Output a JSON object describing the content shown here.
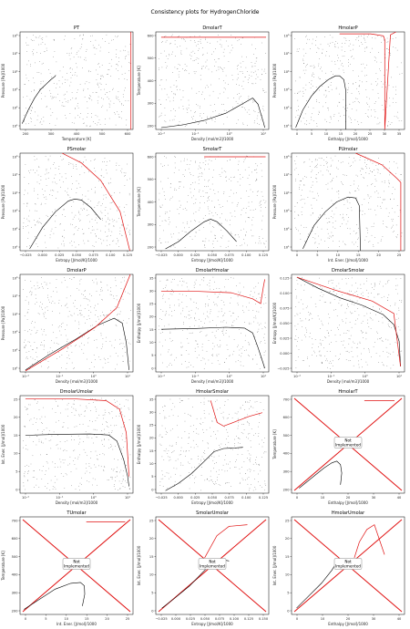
{
  "figure": {
    "title": "Consistency plots for HydrogenChloride",
    "not_implemented_label": "Not\nImplemented"
  },
  "chart_data": [
    {
      "id": "PT",
      "title": "PT",
      "type": "scatter",
      "xlabel": "Temperature [K]",
      "ylabel": "Pressure [Pa]/1000",
      "xticks": [
        "200",
        "300",
        "400",
        "500",
        "600"
      ],
      "yticks": [
        "10¹",
        "10²",
        "10³",
        "10⁴",
        "10⁵",
        "10⁶"
      ],
      "xlim": [
        150,
        700
      ],
      "yscale": "log",
      "ylim": [
        1,
        6
      ],
      "saturation": {
        "x": [
          160,
          190,
          220,
          250,
          280,
          300,
          320,
          324
        ],
        "y": [
          1.3,
          2.0,
          2.6,
          3.05,
          3.35,
          3.55,
          3.72,
          3.78
        ]
      },
      "grid_points": {
        "x_range": [
          160,
          690
        ],
        "y_range": [
          1,
          6
        ]
      },
      "redline": {
        "x": [
          690,
          690
        ],
        "y": [
          1,
          6
        ]
      },
      "implemented": true
    },
    {
      "id": "DmolarT",
      "title": "DmolarT",
      "type": "scatter",
      "xlabel": "Density [mol/m3]/1000",
      "ylabel": "Temperature [K]",
      "xticks": [
        "10⁻²",
        "10⁻¹",
        "10⁰",
        "10¹"
      ],
      "yticks": [
        "200",
        "300",
        "400",
        "500",
        "600"
      ],
      "xscale": "log",
      "xlim": [
        -2.6,
        1.6
      ],
      "ylim": [
        150,
        690
      ],
      "dome_gas": {
        "x": [
          -2.4,
          -1.6,
          -0.8,
          0,
          0.6,
          0.9,
          1.0
        ],
        "y": [
          160,
          175,
          200,
          240,
          290,
          315,
          324
        ]
      },
      "dome_liq": {
        "x": [
          1.0,
          1.2,
          1.3,
          1.4,
          1.45
        ],
        "y": [
          324,
          290,
          240,
          190,
          160
        ]
      },
      "redline": {
        "x": [
          -2.4,
          1.5
        ],
        "y": [
          660,
          660
        ]
      },
      "implemented": true
    },
    {
      "id": "HmolarP",
      "title": "HmolarP",
      "type": "scatter",
      "xlabel": "Enthalpy [J/mol]/1000",
      "ylabel": "Pressure [Pa]/1000",
      "xticks": [
        "0",
        "5",
        "10",
        "15",
        "20",
        "25",
        "30",
        "35"
      ],
      "yticks": [
        "10¹",
        "10²",
        "10³",
        "10⁴",
        "10⁵",
        "10⁶"
      ],
      "xlim": [
        -2,
        38
      ],
      "yscale": "log",
      "ylim": [
        1,
        6
      ],
      "dome": {
        "x": [
          -0.5,
          2,
          5,
          8,
          11,
          13.5,
          15,
          16.5,
          17.2,
          17.2
        ],
        "y": [
          1.1,
          2.0,
          2.7,
          3.2,
          3.55,
          3.75,
          3.75,
          3.55,
          3.0,
          1.0
        ]
      },
      "redline": {
        "x": [
          15,
          26,
          30.5,
          31,
          31,
          33,
          35
        ],
        "y": [
          5.9,
          5.9,
          5.8,
          5.6,
          1,
          5.85,
          6
        ]
      },
      "implemented": true
    },
    {
      "id": "PSmolar",
      "title": "PSmolar",
      "type": "scatter",
      "xlabel": "Entropy [J/mol/K]/1000",
      "ylabel": "Pressure [Pa]/1000",
      "xticks": [
        "−0.025",
        "0.000",
        "0.025",
        "0.050",
        "0.075",
        "0.100",
        "0.125"
      ],
      "yticks": [
        "10¹",
        "10²",
        "10³",
        "10⁴",
        "10⁵",
        "10⁶"
      ],
      "xlim": [
        -0.035,
        0.14
      ],
      "yscale": "log",
      "ylim": [
        1,
        6
      ],
      "dome": {
        "x": [
          -0.02,
          0.0,
          0.02,
          0.04,
          0.05,
          0.06,
          0.075,
          0.09
        ],
        "y": [
          1.1,
          2.2,
          3.0,
          3.55,
          3.65,
          3.6,
          3.2,
          2.6
        ]
      },
      "redline": {
        "x": [
          0.03,
          0.06,
          0.09,
          0.12,
          0.135
        ],
        "y": [
          6,
          5.5,
          4.6,
          3.0,
          1.0
        ]
      },
      "implemented": true
    },
    {
      "id": "SmolarT",
      "title": "SmolarT",
      "type": "scatter",
      "xlabel": "Entropy [J/mol/K]/1000",
      "ylabel": "Temperature [K]",
      "xticks": [
        "−0.025",
        "0.000",
        "0.025",
        "0.050",
        "0.075",
        "0.100",
        "0.125"
      ],
      "yticks": [
        "200",
        "300",
        "400",
        "500",
        "600"
      ],
      "xlim": [
        -0.035,
        0.14
      ],
      "ylim": [
        150,
        690
      ],
      "dome": {
        "x": [
          -0.02,
          0.0,
          0.02,
          0.04,
          0.05,
          0.06,
          0.075,
          0.09
        ],
        "y": [
          160,
          200,
          260,
          310,
          324,
          310,
          260,
          200
        ]
      },
      "redline": {
        "x": [
          0.04,
          0.135
        ],
        "y": [
          670,
          670
        ]
      },
      "implemented": true
    },
    {
      "id": "PUmolar",
      "title": "PUmolar",
      "type": "scatter",
      "xlabel": "Int. Ener. [J/mol]/1000",
      "ylabel": "Pressure [Pa]/1000",
      "xticks": [
        "0",
        "5",
        "10",
        "15",
        "20",
        "25"
      ],
      "yticks": [
        "10¹",
        "10²",
        "10³",
        "10⁴",
        "10⁵",
        "10⁶"
      ],
      "xlim": [
        -4,
        26
      ],
      "yscale": "log",
      "ylim": [
        1,
        6
      ],
      "dome": {
        "x": [
          -1,
          2,
          5,
          8,
          11,
          13,
          14,
          14.3
        ],
        "y": [
          1.1,
          2.3,
          3.0,
          3.5,
          3.75,
          3.7,
          3.3,
          1.0
        ]
      },
      "redline": {
        "x": [
          13,
          20,
          24,
          25,
          25
        ],
        "y": [
          6,
          5.4,
          4.7,
          4.5,
          1.0
        ]
      },
      "implemented": true
    },
    {
      "id": "DmolarP",
      "title": "DmolarP",
      "type": "scatter",
      "xlabel": "Density [mol/m3]/1000",
      "ylabel": "Pressure [Pa]/1000",
      "xticks": [
        "10⁻²",
        "10⁻¹",
        "10⁰",
        "10¹"
      ],
      "yticks": [
        "10¹",
        "10²",
        "10³",
        "10⁴",
        "10⁵",
        "10⁶"
      ],
      "xscale": "log",
      "xlim": [
        -2.6,
        1.6
      ],
      "yscale": "log",
      "ylim": [
        1,
        6
      ],
      "dome": {
        "x": [
          -2.4,
          -1.5,
          -0.5,
          0.3,
          0.9,
          1.2,
          1.35,
          1.45
        ],
        "y": [
          1.1,
          1.9,
          2.7,
          3.4,
          3.75,
          3.5,
          2.5,
          1.1
        ]
      },
      "redline": {
        "x": [
          -2.4,
          -1.0,
          0.2,
          1.0,
          1.5
        ],
        "y": [
          1.05,
          2.2,
          3.3,
          4.3,
          6.0
        ]
      },
      "implemented": true
    },
    {
      "id": "DmolarHmolar",
      "title": "DmolarHmolar",
      "type": "scatter",
      "xlabel": "Density [mol/m3]/1000",
      "ylabel": "Enthalpy [J/mol]/1000",
      "xticks": [
        "10⁻²",
        "10⁻¹",
        "10⁰",
        "10¹"
      ],
      "yticks": [
        "0",
        "5",
        "10",
        "15",
        "20",
        "25",
        "30",
        "35"
      ],
      "xscale": "log",
      "xlim": [
        -2.6,
        1.6
      ],
      "ylim": [
        -2,
        38
      ],
      "dome": {
        "x": [
          -2.4,
          -1.2,
          0,
          0.7,
          1.0,
          1.2,
          1.35,
          1.45
        ],
        "y": [
          15.5,
          15.8,
          16.3,
          16.0,
          14.0,
          8.0,
          3.0,
          -0.5
        ]
      },
      "redline": {
        "x": [
          -2.4,
          -1.0,
          0.2,
          1.0,
          1.3,
          1.4,
          1.45
        ],
        "y": [
          31,
          31,
          30.5,
          28,
          26,
          33,
          36
        ]
      },
      "implemented": true
    },
    {
      "id": "DmolarSmolar",
      "title": "DmolarSmolar",
      "type": "scatter",
      "xlabel": "Density [mol/m3]/1000",
      "ylabel": "Entropy [J/mol/K]/1000",
      "xticks": [
        "10⁻²",
        "10⁻¹",
        "10⁰",
        "10¹"
      ],
      "yticks": [
        "−0.025",
        "0.000",
        "0.025",
        "0.050",
        "0.075",
        "0.100",
        "0.125"
      ],
      "xscale": "log",
      "xlim": [
        -2.6,
        1.6
      ],
      "ylim": [
        -0.035,
        0.14
      ],
      "dome": {
        "x": [
          -2.4,
          -1.6,
          -0.8,
          0,
          0.8,
          1.2,
          1.4,
          1.45
        ],
        "y": [
          0.135,
          0.115,
          0.098,
          0.085,
          0.068,
          0.05,
          0.02,
          -0.025
        ]
      },
      "redline": {
        "x": [
          -2.4,
          -1.0,
          0.4,
          1.2,
          1.45
        ],
        "y": [
          0.135,
          0.112,
          0.092,
          0.07,
          -0.025
        ]
      },
      "implemented": true
    },
    {
      "id": "DmolarUmolar",
      "title": "DmolarUmolar",
      "type": "scatter",
      "xlabel": "Density [mol/m3]/1000",
      "ylabel": "Int. Ener. [J/mol]/1000",
      "xticks": [
        "10⁻²",
        "10⁻¹",
        "10⁰",
        "10¹"
      ],
      "yticks": [
        "0",
        "5",
        "10",
        "15",
        "20",
        "25"
      ],
      "xscale": "log",
      "xlim": [
        -2.6,
        1.6
      ],
      "ylim": [
        -3,
        26
      ],
      "dome": {
        "x": [
          -2.4,
          -1.2,
          0,
          0.7,
          1.0,
          1.25,
          1.4,
          1.45
        ],
        "y": [
          14.2,
          14.5,
          14.6,
          14.3,
          12.5,
          7.0,
          2.0,
          -1.0
        ]
      },
      "redline": {
        "x": [
          -2.4,
          -0.5,
          0.6,
          1.1,
          1.35,
          1.45
        ],
        "y": [
          25,
          25,
          24.5,
          22,
          15,
          2
        ]
      },
      "implemented": true
    },
    {
      "id": "HmolarSmolar",
      "title": "HmolarSmolar",
      "type": "scatter",
      "xlabel": "Entropy [J/mol/K]/1000",
      "ylabel": "Enthalpy [J/mol]/1000",
      "xticks": [
        "−0.025",
        "0.000",
        "0.025",
        "0.050",
        "0.075",
        "0.100",
        "0.125"
      ],
      "yticks": [
        "0",
        "5",
        "10",
        "15",
        "20",
        "25",
        "30",
        "35"
      ],
      "xlim": [
        -0.035,
        0.14
      ],
      "ylim": [
        -2,
        38
      ],
      "dome": {
        "x": [
          -0.02,
          0.0,
          0.02,
          0.04,
          0.055,
          0.07,
          0.085,
          0.1
        ],
        "y": [
          -1.0,
          2.0,
          6.0,
          11.0,
          15.0,
          16.3,
          16.5,
          16.8
        ]
      },
      "redline": {
        "x": [
          0.05,
          0.06,
          0.07,
          0.09,
          0.11,
          0.13
        ],
        "y": [
          36,
          27,
          25.5,
          27.5,
          29.5,
          31
        ]
      },
      "implemented": true
    },
    {
      "id": "HmolarT",
      "title": "HmolarT",
      "type": "scatter",
      "xlabel": "Enthalpy [J/mol]/1000",
      "ylabel": "Temperature [K]",
      "xticks": [
        "0",
        "10",
        "20",
        "30",
        "40"
      ],
      "yticks": [
        "200",
        "300",
        "400",
        "500",
        "600",
        "700"
      ],
      "xlim": [
        -3,
        42
      ],
      "ylim": [
        130,
        710
      ],
      "dome": {
        "x": [
          0,
          5,
          10,
          13,
          15,
          16.5,
          17,
          16.5
        ],
        "y": [
          160,
          220,
          280,
          310,
          320,
          300,
          250,
          180
        ]
      },
      "redline": {
        "x": [
          26,
          38
        ],
        "y": [
          680,
          680
        ]
      },
      "implemented": false
    },
    {
      "id": "TUmolar",
      "title": "TUmolar",
      "type": "scatter",
      "xlabel": "Int. Ener. [J/mol]/1000",
      "ylabel": "Temperature [K]",
      "xticks": [
        "0",
        "5",
        "10",
        "15",
        "20",
        "25"
      ],
      "yticks": [
        "200",
        "300",
        "400",
        "500",
        "600",
        "700"
      ],
      "xlim": [
        -2,
        27
      ],
      "ylim": [
        130,
        710
      ],
      "dome": {
        "x": [
          -1,
          3,
          7,
          11,
          13.5,
          14.5,
          14.6,
          14
        ],
        "y": [
          160,
          220,
          280,
          315,
          320,
          300,
          250,
          180
        ]
      },
      "redline": {
        "x": [
          15,
          25
        ],
        "y": [
          680,
          680
        ]
      },
      "implemented": false
    },
    {
      "id": "SmolarUmolar",
      "title": "SmolarUmolar",
      "type": "scatter",
      "xlabel": "Entropy [J/mol/K]/1000",
      "ylabel": "Int. Ener. [J/mol]/1000",
      "xticks": [
        "−0.025",
        "0.000",
        "0.025",
        "0.050",
        "0.075",
        "0.100",
        "0.125",
        "0.150"
      ],
      "yticks": [
        "0",
        "5",
        "10",
        "15",
        "20",
        "25"
      ],
      "xlim": [
        -0.03,
        0.155
      ],
      "ylim": [
        -3,
        28
      ],
      "dome": {
        "x": [
          -0.02,
          0.0,
          0.025,
          0.05,
          0.065,
          0.075,
          0.09
        ],
        "y": [
          -1,
          2,
          6,
          11,
          14,
          14.5,
          14.0
        ]
      },
      "redline": {
        "x": [
          0.05,
          0.07,
          0.09,
          0.12
        ],
        "y": [
          15,
          22,
          25,
          25.5
        ]
      },
      "implemented": false
    },
    {
      "id": "HmolarUmolar",
      "title": "HmolarUmolar",
      "type": "scatter",
      "xlabel": "Enthalpy [J/mol]/1000",
      "ylabel": "Int. Ener. [J/mol]/1000",
      "xticks": [
        "0",
        "10",
        "20",
        "30",
        "40"
      ],
      "yticks": [
        "0",
        "5",
        "10",
        "15",
        "20",
        "25"
      ],
      "xlim": [
        -3,
        42
      ],
      "ylim": [
        -3,
        28
      ],
      "dome": {
        "x": [
          -1,
          4,
          9,
          13,
          15,
          16.5,
          17
        ],
        "y": [
          -1,
          3,
          7,
          11,
          13.5,
          14.2,
          14.4
        ]
      },
      "redline": {
        "x": [
          22,
          24,
          27,
          30,
          34
        ],
        "y": [
          15,
          20,
          24,
          25.5,
          16
        ]
      },
      "implemented": false
    }
  ]
}
